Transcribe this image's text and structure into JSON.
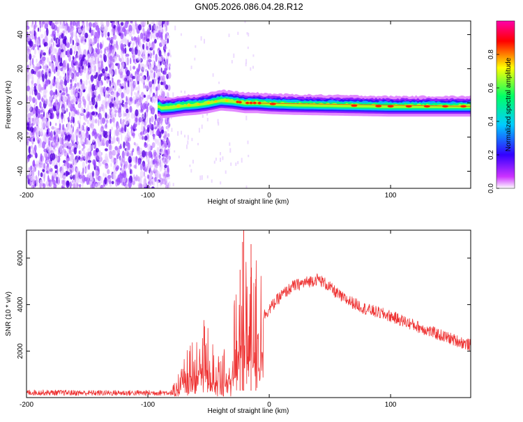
{
  "chart_data": [
    {
      "type": "heatmap",
      "title": "GN05.2026.086.04.28.R12",
      "xlabel": "Height of straight line (km)",
      "ylabel": "Frequency (Hz)",
      "xlim": [
        -200,
        166
      ],
      "ylim": [
        -50,
        48
      ],
      "xticks": [
        -200,
        -100,
        0,
        100
      ],
      "yticks": [
        -40,
        -20,
        0,
        20,
        40
      ],
      "colorbar": {
        "label": "Normalized spectral amplitude",
        "range": [
          0,
          1
        ],
        "ticks": [
          "0.0",
          "0.2",
          "0.4",
          "0.6",
          "0.8"
        ],
        "colors": [
          "#ffffff",
          "#cc33ff",
          "#3300ff",
          "#00ccff",
          "#00ff66",
          "#ffff00",
          "#ff0000",
          "#ff00aa"
        ]
      },
      "ridge": [
        {
          "x": -90,
          "y": -3
        },
        {
          "x": -80,
          "y": -2.5
        },
        {
          "x": -70,
          "y": -1.5
        },
        {
          "x": -60,
          "y": -1
        },
        {
          "x": -50,
          "y": 0
        },
        {
          "x": -40,
          "y": 1.5
        },
        {
          "x": -30,
          "y": 1
        },
        {
          "x": -20,
          "y": 0
        },
        {
          "x": -10,
          "y": 0
        },
        {
          "x": 0,
          "y": -0.5
        },
        {
          "x": 20,
          "y": -1
        },
        {
          "x": 60,
          "y": -1.5
        },
        {
          "x": 100,
          "y": -2
        },
        {
          "x": 166,
          "y": -2
        }
      ],
      "noise_region_xlim": [
        -200,
        -82
      ]
    },
    {
      "type": "line",
      "xlabel": "Height of straight line (km)",
      "ylabel": "SNR (10 * v/v)",
      "xlim": [
        -200,
        166
      ],
      "ylim": [
        0,
        7200
      ],
      "xticks": [
        -200,
        -100,
        0,
        100
      ],
      "yticks": [
        2000,
        4000,
        6000
      ],
      "color": "#ee3333",
      "envelope": [
        {
          "x": -200,
          "y": 220
        },
        {
          "x": -150,
          "y": 200
        },
        {
          "x": -100,
          "y": 200
        },
        {
          "x": -80,
          "y": 220
        },
        {
          "x": -72,
          "y": 700
        },
        {
          "x": -62,
          "y": 1500
        },
        {
          "x": -52,
          "y": 1700
        },
        {
          "x": -44,
          "y": 900
        },
        {
          "x": -36,
          "y": 1100
        },
        {
          "x": -28,
          "y": 2300
        },
        {
          "x": -20,
          "y": 3400
        },
        {
          "x": -15,
          "y": 3300
        },
        {
          "x": -10,
          "y": 3300
        },
        {
          "x": -5,
          "y": 3500
        },
        {
          "x": 0,
          "y": 3800
        },
        {
          "x": 10,
          "y": 4400
        },
        {
          "x": 20,
          "y": 4800
        },
        {
          "x": 30,
          "y": 4950
        },
        {
          "x": 40,
          "y": 5100
        },
        {
          "x": 45,
          "y": 4950
        },
        {
          "x": 60,
          "y": 4300
        },
        {
          "x": 80,
          "y": 3800
        },
        {
          "x": 100,
          "y": 3500
        },
        {
          "x": 120,
          "y": 3100
        },
        {
          "x": 140,
          "y": 2700
        },
        {
          "x": 160,
          "y": 2350
        },
        {
          "x": 166,
          "y": 2250
        }
      ],
      "spikes": [
        {
          "x": -22,
          "y": 6700
        },
        {
          "x": -21,
          "y": 7200
        },
        {
          "x": -15,
          "y": 6600
        },
        {
          "x": -24,
          "y": 5500
        },
        {
          "x": -11,
          "y": 5100
        }
      ]
    }
  ]
}
